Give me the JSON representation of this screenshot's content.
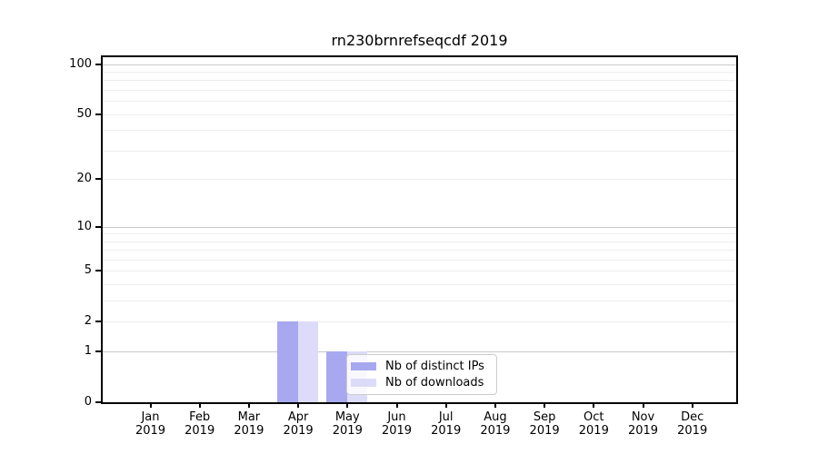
{
  "chart_data": {
    "type": "bar",
    "title": "rn230brnrefseqcdf 2019",
    "x_categories": [
      "Jan",
      "Feb",
      "Mar",
      "Apr",
      "May",
      "Jun",
      "Jul",
      "Aug",
      "Sep",
      "Oct",
      "Nov",
      "Dec"
    ],
    "x_year_label": "2019",
    "series": [
      {
        "name": "Nb of distinct IPs",
        "color": "#a8a8f0",
        "values": [
          0,
          0,
          0,
          2,
          1,
          0,
          0,
          0,
          0,
          0,
          0,
          0
        ]
      },
      {
        "name": "Nb of downloads",
        "color": "#dcdcf8",
        "values": [
          0,
          0,
          0,
          2,
          1,
          0,
          0,
          0,
          0,
          0,
          0,
          0
        ]
      }
    ],
    "y_axis": {
      "scale": "symlog-log1p",
      "tick_values": [
        0,
        1,
        2,
        5,
        10,
        20,
        50,
        100
      ],
      "tick_labels": [
        "0",
        "1",
        "2",
        "5",
        "10",
        "20",
        "50",
        "100"
      ],
      "max": 110,
      "grid_major": [
        1,
        10,
        100
      ],
      "grid_minor": [
        2,
        3,
        4,
        5,
        6,
        7,
        8,
        9,
        20,
        30,
        40,
        50,
        60,
        70,
        80,
        90
      ]
    },
    "legend": {
      "entries": [
        "Nb of distinct IPs",
        "Nb of downloads"
      ],
      "location": "lower-center"
    },
    "colors": {
      "grid_major": "#c8c8c8",
      "grid_minor": "#ededed",
      "spine": "#000000",
      "background": "#ffffff",
      "legend_border": "#cccccc"
    }
  }
}
